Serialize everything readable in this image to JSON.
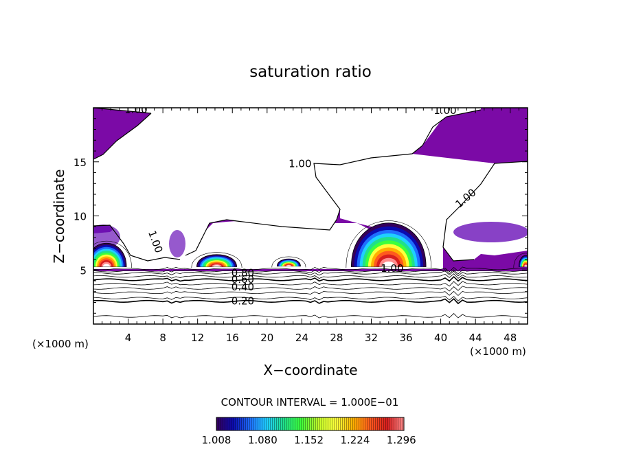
{
  "chart_data": {
    "type": "contour",
    "title": "saturation ratio",
    "xlabel": "X−coordinate",
    "ylabel": "Z−coordinate",
    "x_units_left": "(×1000 m)",
    "x_units_right": "(×1000 m)",
    "xlim": [
      0,
      50
    ],
    "ylim": [
      0,
      20
    ],
    "x_ticks": [
      4,
      8,
      12,
      16,
      20,
      24,
      28,
      32,
      36,
      40,
      44,
      48
    ],
    "y_ticks": [
      5,
      10,
      15
    ],
    "y_tick_labels": [
      "5",
      "10",
      "15"
    ],
    "x_tick_labels": [
      "4",
      "8",
      "12",
      "16",
      "20",
      "24",
      "28",
      "32",
      "36",
      "40",
      "44",
      "48"
    ],
    "contour_labels": [
      {
        "text": "1.00",
        "x": 4.9,
        "y": 19.8,
        "angle": 0
      },
      {
        "text": "1.00",
        "x": 40.5,
        "y": 19.7,
        "angle": 0
      },
      {
        "text": "1.00",
        "x": 23.8,
        "y": 14.8,
        "angle": 0
      },
      {
        "text": "1.00",
        "x": 42.9,
        "y": 11.6,
        "angle": -40
      },
      {
        "text": "1.00",
        "x": 7.1,
        "y": 7.6,
        "angle": 70
      },
      {
        "text": "1.00",
        "x": 34.4,
        "y": 5.1,
        "angle": 0
      },
      {
        "text": "0.80",
        "x": 17.2,
        "y": 4.7,
        "angle": 0
      },
      {
        "text": "0.60",
        "x": 17.2,
        "y": 4.1,
        "angle": 0
      },
      {
        "text": "0.40",
        "x": 17.2,
        "y": 3.4,
        "angle": 0
      },
      {
        "text": "0.20",
        "x": 17.2,
        "y": 2.1,
        "angle": 0
      }
    ],
    "contour_levels_below": [
      0.2,
      0.3,
      0.4,
      0.5,
      0.6,
      0.7,
      0.8,
      0.9,
      1.0
    ],
    "contour_interval_text": "CONTOUR INTERVAL =  1.000E−01",
    "colorbar": {
      "min": 1.008,
      "max": 1.3,
      "tick_labels": [
        "1.008",
        "1.080",
        "1.152",
        "1.224",
        "1.296"
      ],
      "colors": [
        "#35005a",
        "#0b0bb0",
        "#1f6fff",
        "#1fd0ff",
        "#20e08a",
        "#3cff3c",
        "#c8ff2a",
        "#ffff3c",
        "#ffb000",
        "#ff5a1e",
        "#d81e1e",
        "#ff8c8c"
      ]
    },
    "fill_color_saturated": "#7b0aa6",
    "line_color": "#000000"
  }
}
